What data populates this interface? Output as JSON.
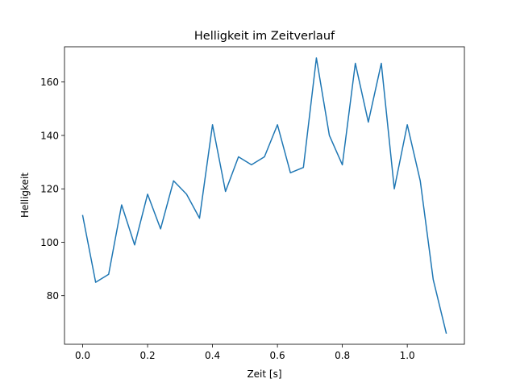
{
  "chart_data": {
    "type": "line",
    "title": "Helligkeit im Zeitverlauf",
    "xlabel": "Zeit [s]",
    "ylabel": "Helligkeit",
    "xlim": [
      -0.056,
      1.176
    ],
    "ylim": [
      61.8,
      173.2
    ],
    "xticks": [
      0.0,
      0.2,
      0.4,
      0.6,
      0.8,
      1.0
    ],
    "xtick_labels": [
      "0.0",
      "0.2",
      "0.4",
      "0.6",
      "0.8",
      "1.0"
    ],
    "yticks": [
      80,
      100,
      120,
      140,
      160
    ],
    "ytick_labels": [
      "80",
      "100",
      "120",
      "140",
      "160"
    ],
    "grid": false,
    "legend": "none",
    "line_color": "#1f77b4",
    "series": [
      {
        "x": [
          0.0,
          0.04,
          0.08,
          0.12,
          0.16,
          0.2,
          0.24,
          0.28,
          0.32,
          0.36,
          0.4,
          0.44,
          0.48,
          0.52,
          0.56,
          0.6,
          0.64,
          0.68,
          0.72,
          0.76,
          0.8,
          0.84,
          0.88,
          0.92,
          0.96,
          1.0,
          1.04,
          1.08,
          1.12
        ],
        "y": [
          110,
          85,
          88,
          114,
          99,
          118,
          105,
          123,
          118,
          109,
          144,
          119,
          132,
          129,
          132,
          144,
          126,
          128,
          169,
          140,
          129,
          167,
          145,
          167,
          120,
          144,
          123,
          86,
          66
        ]
      }
    ]
  }
}
